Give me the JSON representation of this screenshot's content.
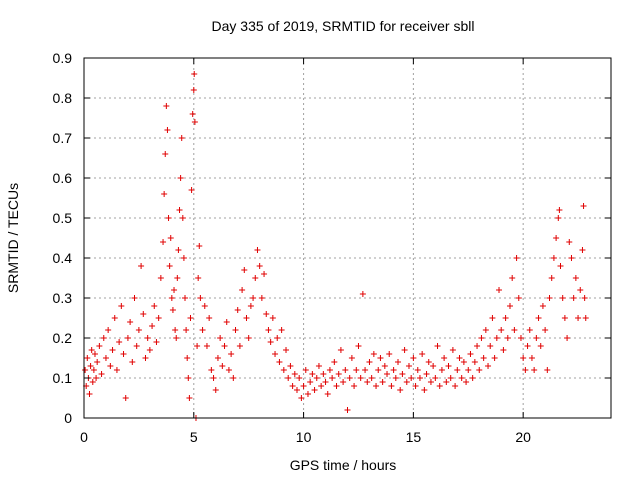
{
  "chart_data": {
    "type": "scatter",
    "title": "Day 335 of 2019, SRMTID for receiver sbll",
    "xlabel": "GPS time / hours",
    "ylabel": "SRMTID / TECUs",
    "xlim": [
      0,
      24
    ],
    "ylim": [
      0,
      0.9
    ],
    "xticks": [
      0,
      5,
      10,
      15,
      20
    ],
    "xtick_labels": [
      "0",
      "5",
      "10",
      "15",
      "20"
    ],
    "yticks": [
      0,
      0.1,
      0.2,
      0.3,
      0.4,
      0.5,
      0.6,
      0.7,
      0.8,
      0.9
    ],
    "ytick_labels": [
      "0",
      "0.1",
      "0.2",
      "0.3",
      "0.4",
      "0.5",
      "0.6",
      "0.7",
      "0.8",
      "0.9"
    ],
    "grid": true,
    "marker": "+",
    "color": "#e00000",
    "series": [
      {
        "name": "SRMTID",
        "points": [
          [
            0.05,
            0.12
          ],
          [
            0.1,
            0.08
          ],
          [
            0.15,
            0.15
          ],
          [
            0.2,
            0.1
          ],
          [
            0.25,
            0.06
          ],
          [
            0.3,
            0.13
          ],
          [
            0.35,
            0.17
          ],
          [
            0.4,
            0.09
          ],
          [
            0.45,
            0.12
          ],
          [
            0.5,
            0.16
          ],
          [
            0.55,
            0.1
          ],
          [
            0.6,
            0.14
          ],
          [
            0.7,
            0.18
          ],
          [
            0.8,
            0.11
          ],
          [
            0.9,
            0.2
          ],
          [
            1.0,
            0.15
          ],
          [
            1.1,
            0.22
          ],
          [
            1.2,
            0.13
          ],
          [
            1.3,
            0.17
          ],
          [
            1.4,
            0.25
          ],
          [
            1.5,
            0.12
          ],
          [
            1.6,
            0.19
          ],
          [
            1.7,
            0.28
          ],
          [
            1.8,
            0.16
          ],
          [
            1.9,
            0.05
          ],
          [
            2.0,
            0.2
          ],
          [
            2.1,
            0.24
          ],
          [
            2.2,
            0.14
          ],
          [
            2.3,
            0.3
          ],
          [
            2.4,
            0.18
          ],
          [
            2.5,
            0.22
          ],
          [
            2.6,
            0.38
          ],
          [
            2.7,
            0.26
          ],
          [
            2.8,
            0.15
          ],
          [
            2.9,
            0.2
          ],
          [
            3.0,
            0.17
          ],
          [
            3.1,
            0.23
          ],
          [
            3.2,
            0.28
          ],
          [
            3.3,
            0.19
          ],
          [
            3.4,
            0.25
          ],
          [
            3.5,
            0.35
          ],
          [
            3.6,
            0.44
          ],
          [
            3.65,
            0.56
          ],
          [
            3.7,
            0.66
          ],
          [
            3.75,
            0.78
          ],
          [
            3.8,
            0.72
          ],
          [
            3.85,
            0.5
          ],
          [
            3.9,
            0.38
          ],
          [
            3.95,
            0.45
          ],
          [
            4.0,
            0.3
          ],
          [
            4.05,
            0.27
          ],
          [
            4.1,
            0.32
          ],
          [
            4.15,
            0.22
          ],
          [
            4.2,
            0.2
          ],
          [
            4.25,
            0.35
          ],
          [
            4.3,
            0.42
          ],
          [
            4.35,
            0.52
          ],
          [
            4.4,
            0.6
          ],
          [
            4.45,
            0.7
          ],
          [
            4.5,
            0.5
          ],
          [
            4.55,
            0.4
          ],
          [
            4.6,
            0.3
          ],
          [
            4.65,
            0.22
          ],
          [
            4.7,
            0.15
          ],
          [
            4.75,
            0.1
          ],
          [
            4.8,
            0.05
          ],
          [
            4.85,
            0.25
          ],
          [
            4.9,
            0.57
          ],
          [
            4.95,
            0.76
          ],
          [
            5.0,
            0.82
          ],
          [
            5.02,
            0.86
          ],
          [
            5.05,
            0.74
          ],
          [
            5.1,
            0.0
          ],
          [
            5.15,
            0.18
          ],
          [
            5.2,
            0.35
          ],
          [
            5.25,
            0.43
          ],
          [
            5.3,
            0.3
          ],
          [
            5.4,
            0.22
          ],
          [
            5.5,
            0.28
          ],
          [
            5.6,
            0.18
          ],
          [
            5.7,
            0.25
          ],
          [
            5.8,
            0.12
          ],
          [
            5.9,
            0.1
          ],
          [
            6.0,
            0.07
          ],
          [
            6.1,
            0.15
          ],
          [
            6.2,
            0.2
          ],
          [
            6.3,
            0.13
          ],
          [
            6.4,
            0.18
          ],
          [
            6.5,
            0.24
          ],
          [
            6.6,
            0.12
          ],
          [
            6.7,
            0.16
          ],
          [
            6.8,
            0.1
          ],
          [
            6.9,
            0.22
          ],
          [
            7.0,
            0.27
          ],
          [
            7.1,
            0.18
          ],
          [
            7.2,
            0.32
          ],
          [
            7.3,
            0.37
          ],
          [
            7.4,
            0.25
          ],
          [
            7.5,
            0.2
          ],
          [
            7.6,
            0.28
          ],
          [
            7.7,
            0.3
          ],
          [
            7.8,
            0.35
          ],
          [
            7.9,
            0.42
          ],
          [
            8.0,
            0.38
          ],
          [
            8.1,
            0.3
          ],
          [
            8.2,
            0.36
          ],
          [
            8.3,
            0.26
          ],
          [
            8.4,
            0.22
          ],
          [
            8.5,
            0.19
          ],
          [
            8.6,
            0.25
          ],
          [
            8.7,
            0.16
          ],
          [
            8.8,
            0.2
          ],
          [
            8.9,
            0.14
          ],
          [
            9.0,
            0.22
          ],
          [
            9.1,
            0.12
          ],
          [
            9.2,
            0.17
          ],
          [
            9.3,
            0.1
          ],
          [
            9.4,
            0.13
          ],
          [
            9.5,
            0.08
          ],
          [
            9.6,
            0.11
          ],
          [
            9.7,
            0.07
          ],
          [
            9.8,
            0.1
          ],
          [
            9.9,
            0.05
          ],
          [
            10.0,
            0.08
          ],
          [
            10.1,
            0.12
          ],
          [
            10.2,
            0.06
          ],
          [
            10.3,
            0.09
          ],
          [
            10.4,
            0.11
          ],
          [
            10.5,
            0.07
          ],
          [
            10.6,
            0.1
          ],
          [
            10.7,
            0.13
          ],
          [
            10.8,
            0.08
          ],
          [
            10.9,
            0.11
          ],
          [
            11.0,
            0.09
          ],
          [
            11.1,
            0.06
          ],
          [
            11.2,
            0.12
          ],
          [
            11.3,
            0.1
          ],
          [
            11.4,
            0.14
          ],
          [
            11.5,
            0.08
          ],
          [
            11.6,
            0.11
          ],
          [
            11.7,
            0.17
          ],
          [
            11.8,
            0.09
          ],
          [
            11.9,
            0.12
          ],
          [
            12.0,
            0.02
          ],
          [
            12.1,
            0.1
          ],
          [
            12.2,
            0.15
          ],
          [
            12.3,
            0.08
          ],
          [
            12.4,
            0.12
          ],
          [
            12.5,
            0.18
          ],
          [
            12.6,
            0.1
          ],
          [
            12.7,
            0.31
          ],
          [
            12.8,
            0.12
          ],
          [
            12.9,
            0.09
          ],
          [
            13.0,
            0.14
          ],
          [
            13.1,
            0.1
          ],
          [
            13.2,
            0.16
          ],
          [
            13.3,
            0.08
          ],
          [
            13.4,
            0.12
          ],
          [
            13.5,
            0.15
          ],
          [
            13.6,
            0.09
          ],
          [
            13.7,
            0.13
          ],
          [
            13.8,
            0.11
          ],
          [
            13.9,
            0.16
          ],
          [
            14.0,
            0.08
          ],
          [
            14.1,
            0.12
          ],
          [
            14.2,
            0.1
          ],
          [
            14.3,
            0.14
          ],
          [
            14.4,
            0.07
          ],
          [
            14.5,
            0.11
          ],
          [
            14.6,
            0.17
          ],
          [
            14.7,
            0.09
          ],
          [
            14.8,
            0.13
          ],
          [
            14.9,
            0.1
          ],
          [
            15.0,
            0.15
          ],
          [
            15.1,
            0.08
          ],
          [
            15.2,
            0.12
          ],
          [
            15.3,
            0.1
          ],
          [
            15.4,
            0.16
          ],
          [
            15.5,
            0.07
          ],
          [
            15.6,
            0.11
          ],
          [
            15.7,
            0.14
          ],
          [
            15.8,
            0.09
          ],
          [
            15.9,
            0.13
          ],
          [
            16.0,
            0.1
          ],
          [
            16.1,
            0.18
          ],
          [
            16.2,
            0.08
          ],
          [
            16.3,
            0.12
          ],
          [
            16.4,
            0.15
          ],
          [
            16.5,
            0.09
          ],
          [
            16.6,
            0.13
          ],
          [
            16.7,
            0.1
          ],
          [
            16.8,
            0.17
          ],
          [
            16.9,
            0.08
          ],
          [
            17.0,
            0.12
          ],
          [
            17.1,
            0.15
          ],
          [
            17.2,
            0.1
          ],
          [
            17.3,
            0.14
          ],
          [
            17.4,
            0.09
          ],
          [
            17.5,
            0.12
          ],
          [
            17.6,
            0.16
          ],
          [
            17.7,
            0.1
          ],
          [
            17.8,
            0.14
          ],
          [
            17.9,
            0.18
          ],
          [
            18.0,
            0.12
          ],
          [
            18.1,
            0.2
          ],
          [
            18.2,
            0.15
          ],
          [
            18.3,
            0.22
          ],
          [
            18.4,
            0.13
          ],
          [
            18.5,
            0.18
          ],
          [
            18.6,
            0.25
          ],
          [
            18.7,
            0.15
          ],
          [
            18.8,
            0.2
          ],
          [
            18.9,
            0.32
          ],
          [
            19.0,
            0.22
          ],
          [
            19.1,
            0.17
          ],
          [
            19.2,
            0.25
          ],
          [
            19.3,
            0.2
          ],
          [
            19.4,
            0.28
          ],
          [
            19.5,
            0.35
          ],
          [
            19.6,
            0.22
          ],
          [
            19.7,
            0.4
          ],
          [
            19.8,
            0.3
          ],
          [
            19.9,
            0.2
          ],
          [
            20.0,
            0.15
          ],
          [
            20.1,
            0.12
          ],
          [
            20.2,
            0.18
          ],
          [
            20.3,
            0.22
          ],
          [
            20.4,
            0.15
          ],
          [
            20.5,
            0.12
          ],
          [
            20.6,
            0.2
          ],
          [
            20.7,
            0.25
          ],
          [
            20.8,
            0.18
          ],
          [
            20.9,
            0.28
          ],
          [
            21.0,
            0.22
          ],
          [
            21.1,
            0.12
          ],
          [
            21.2,
            0.3
          ],
          [
            21.3,
            0.35
          ],
          [
            21.4,
            0.4
          ],
          [
            21.5,
            0.45
          ],
          [
            21.6,
            0.5
          ],
          [
            21.65,
            0.52
          ],
          [
            21.7,
            0.38
          ],
          [
            21.8,
            0.3
          ],
          [
            21.9,
            0.25
          ],
          [
            22.0,
            0.2
          ],
          [
            22.1,
            0.44
          ],
          [
            22.2,
            0.4
          ],
          [
            22.3,
            0.3
          ],
          [
            22.4,
            0.35
          ],
          [
            22.5,
            0.25
          ],
          [
            22.6,
            0.32
          ],
          [
            22.7,
            0.42
          ],
          [
            22.75,
            0.53
          ],
          [
            22.8,
            0.3
          ],
          [
            22.85,
            0.25
          ]
        ]
      }
    ]
  }
}
